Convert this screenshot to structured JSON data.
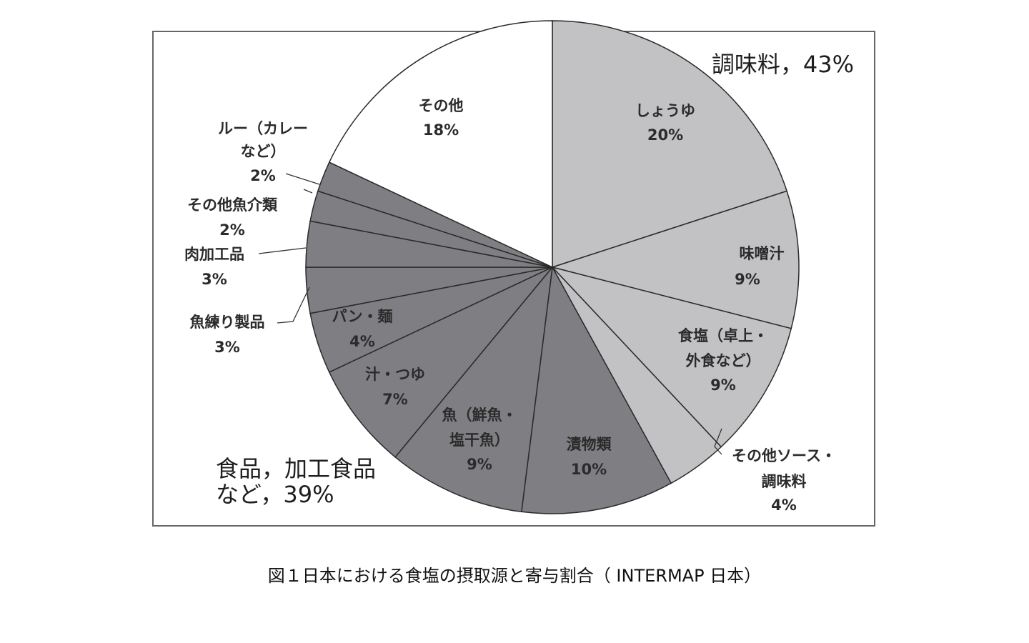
{
  "caption": "図１日本における食塩の摂取源と寄与割合（ INTERMAP 日本）",
  "chart_data": {
    "type": "pie",
    "start": "12 o'clock",
    "direction": "clockwise",
    "groups": [
      {
        "name": "調味料",
        "value_label": "43%",
        "label": "調味料，43%"
      },
      {
        "name": "食品，加工食品など",
        "value_label": "39%",
        "label_line1": "食品，加工食品",
        "label_line2": "など，39%"
      }
    ],
    "slices": [
      {
        "label": "しょうゆ",
        "value": 20,
        "value_label": "20%",
        "group": "調味料",
        "color": "#c2c2c4"
      },
      {
        "label": "味噌汁",
        "value": 9,
        "value_label": "9%",
        "group": "調味料",
        "color": "#c2c2c4"
      },
      {
        "label": "食塩（卓上・外食など）",
        "line1": "食塩（卓上・",
        "line2": "外食など）",
        "value": 9,
        "value_label": "9%",
        "group": "調味料",
        "color": "#c2c2c4"
      },
      {
        "label": "その他ソース・調味料",
        "line1": "その他ソース・",
        "line2": "調味料",
        "value": 4,
        "value_label": "4%",
        "group": "調味料",
        "color": "#c2c2c4"
      },
      {
        "label": "漬物類",
        "value": 10,
        "value_label": "10%",
        "group": "食品，加工食品など",
        "color": "#7f7f83"
      },
      {
        "label": "魚（鮮魚・塩干魚）",
        "line1": "魚（鮮魚・",
        "line2": "塩干魚）",
        "value": 9,
        "value_label": "9%",
        "group": "食品，加工食品など",
        "color": "#7f7f83"
      },
      {
        "label": "汁・つゆ",
        "value": 7,
        "value_label": "7%",
        "group": "食品，加工食品など",
        "color": "#7f7f83"
      },
      {
        "label": "パン・麺",
        "value": 4,
        "value_label": "4%",
        "group": "食品，加工食品など",
        "color": "#7f7f83"
      },
      {
        "label": "魚練り製品",
        "value": 3,
        "value_label": "3%",
        "group": "食品，加工食品など",
        "color": "#7f7f83"
      },
      {
        "label": "肉加工品",
        "value": 3,
        "value_label": "3%",
        "group": "食品，加工食品など",
        "color": "#7f7f83"
      },
      {
        "label": "その他魚介類",
        "value": 2,
        "value_label": "2%",
        "group": "食品，加工食品など",
        "color": "#7f7f83"
      },
      {
        "label": "ルー（カレーなど）",
        "line1": "ルー（カレー",
        "line2": "など）",
        "value": 2,
        "value_label": "2%",
        "group": "食品，加工食品など",
        "color": "#7f7f83"
      },
      {
        "label": "その他",
        "value": 18,
        "value_label": "18%",
        "group": "",
        "color": "#ffffff"
      }
    ]
  }
}
